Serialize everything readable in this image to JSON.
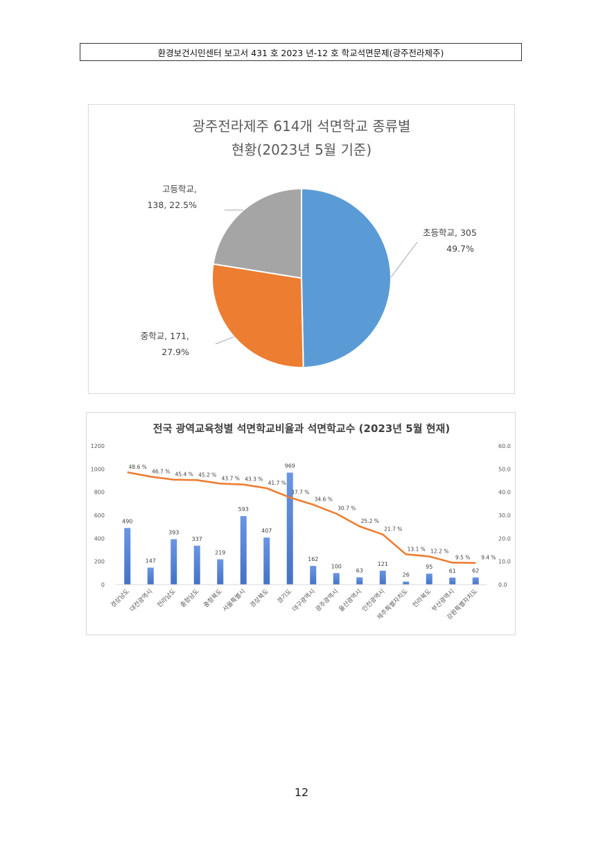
{
  "header": {
    "text": "환경보건시민센터 보고서 431 호 2023 년-12 호 학교석면문제(광주전라제주)"
  },
  "page_number": "12",
  "chart_data": [
    {
      "type": "pie",
      "title_line1": "광주전라제주 614개 석면학교 종류별",
      "title_line2": "현황(2023년 5월 기준)",
      "slices": [
        {
          "name": "초등학교",
          "value": 305,
          "percent": 49.7,
          "color": "#5b9bd5",
          "label_line1": "초등학교, 305",
          "label_line2": "49.7%"
        },
        {
          "name": "중학교",
          "value": 171,
          "percent": 27.9,
          "color": "#ed7d31",
          "label_line1": "중학교, 171,",
          "label_line2": "27.9%"
        },
        {
          "name": "고등학교",
          "value": 138,
          "percent": 22.5,
          "color": "#a5a5a5",
          "label_line1": "고등학교,",
          "label_line2": "138, 22.5%"
        }
      ]
    },
    {
      "type": "bar+line",
      "title": "전국 광역교육청별 석면학교비율과 석면학교수 (2023년 5월 현재)",
      "categories": [
        "경상남도",
        "대전광역시",
        "전라남도",
        "충청남도",
        "충청북도",
        "서울특별시",
        "경상북도",
        "경기도",
        "대구광역시",
        "광주광역시",
        "울산광역시",
        "인천광역시",
        "제주특별자치도",
        "전라북도",
        "부산광역시",
        "강원특별자치도"
      ],
      "bar_values": [
        490,
        147,
        393,
        337,
        219,
        593,
        407,
        969,
        162,
        100,
        63,
        121,
        26,
        95,
        61,
        62
      ],
      "bar_labels": [
        "490",
        "147",
        "393",
        "337",
        "219",
        "593",
        "407",
        "969",
        "162",
        "100",
        "63",
        "121",
        "26",
        "95",
        "61",
        "62"
      ],
      "line_values": [
        48.6,
        46.7,
        45.4,
        45.2,
        43.7,
        43.3,
        41.7,
        37.7,
        34.6,
        30.7,
        25.2,
        21.7,
        13.1,
        12.2,
        9.5,
        9.4
      ],
      "line_labels": [
        "48.6 %",
        "46.7 %",
        "45.4 %",
        "45.2 %",
        "43.7 %",
        "43.3 %",
        "41.7 %",
        "37.7 %",
        "34.6 %",
        "30.7 %",
        "25.2 %",
        "21.7 %",
        "13.1 %",
        "12.2 %",
        "9.5 %",
        "9.4 %"
      ],
      "y_left_ticks": [
        "0",
        "200",
        "400",
        "600",
        "800",
        "1000",
        "1200"
      ],
      "y_right_ticks": [
        "0.0",
        "10.0",
        "20.0",
        "30.0",
        "40.0",
        "50.0",
        "60.0"
      ],
      "ylim_left": [
        0,
        1200
      ],
      "ylim_right": [
        0,
        60
      ],
      "bar_color": "#4472c4",
      "line_color": "#ed7d31"
    }
  ]
}
